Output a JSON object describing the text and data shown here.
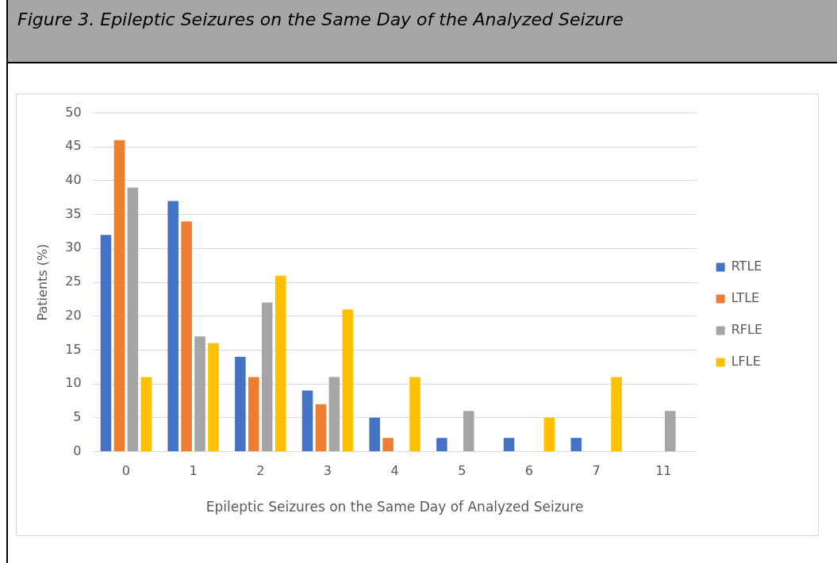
{
  "chart_data": {
    "type": "bar",
    "title": "Figure 3. Epileptic Seizures on the Same Day of the Analyzed Seizure",
    "xlabel": "Epileptic Seizures on the Same Day of Analyzed Seizure",
    "ylabel": "Patients (%)",
    "categories": [
      "0",
      "1",
      "2",
      "3",
      "4",
      "5",
      "6",
      "7",
      "11"
    ],
    "series": [
      {
        "name": "RTLE",
        "color": "#4472c4",
        "values": [
          32,
          37,
          14,
          9,
          5,
          2,
          2,
          2,
          0
        ]
      },
      {
        "name": "LTLE",
        "color": "#ed7d31",
        "values": [
          46,
          34,
          11,
          7,
          2,
          0,
          0,
          0,
          0
        ]
      },
      {
        "name": "RFLE",
        "color": "#a5a5a5",
        "values": [
          39,
          17,
          22,
          11,
          0,
          6,
          0,
          0,
          6
        ]
      },
      {
        "name": "LFLE",
        "color": "#ffc000",
        "values": [
          11,
          16,
          26,
          21,
          11,
          0,
          5,
          11,
          0
        ]
      }
    ],
    "ylim": [
      0,
      50
    ],
    "yticks": [
      0,
      5,
      10,
      15,
      20,
      25,
      30,
      35,
      40,
      45,
      50
    ],
    "grid": "y",
    "legend": "right"
  }
}
